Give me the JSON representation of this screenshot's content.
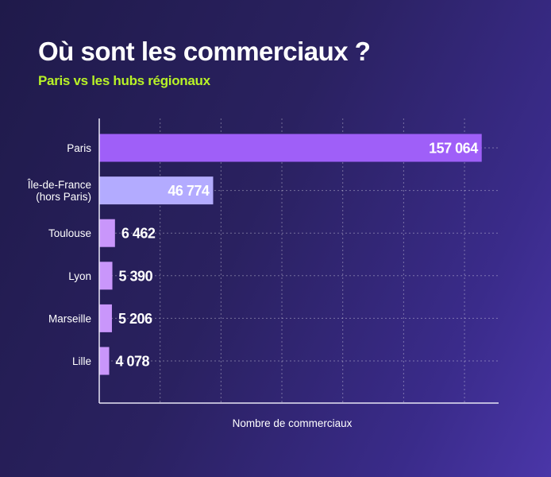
{
  "chart_data": {
    "type": "bar",
    "orientation": "horizontal",
    "title": "Où sont les commerciaux ?",
    "subtitle": "Paris vs les hubs régionaux",
    "xlabel": "Nombre de commerciaux",
    "ylabel": "",
    "categories": [
      "Paris",
      "Île-de-France\n(hors Paris)",
      "Toulouse",
      "Lyon",
      "Marseille",
      "Lille"
    ],
    "values": [
      157064,
      46774,
      6462,
      5390,
      5206,
      4078
    ],
    "data_labels": [
      "157 064",
      "46 774",
      "6 462",
      "5 390",
      "5 206",
      "4 078"
    ],
    "bar_colors": [
      "#9f5ff8",
      "#b3abff",
      "#c996fb",
      "#c996fb",
      "#c996fb",
      "#c996fb"
    ],
    "xlim": [
      0,
      164000
    ],
    "grid_step": 25000,
    "grid": true,
    "grid_style": "dotted",
    "legend": "none",
    "colors": {
      "title": "#ffffff",
      "subtitle": "#b8f227",
      "background": "#2a2160"
    }
  }
}
